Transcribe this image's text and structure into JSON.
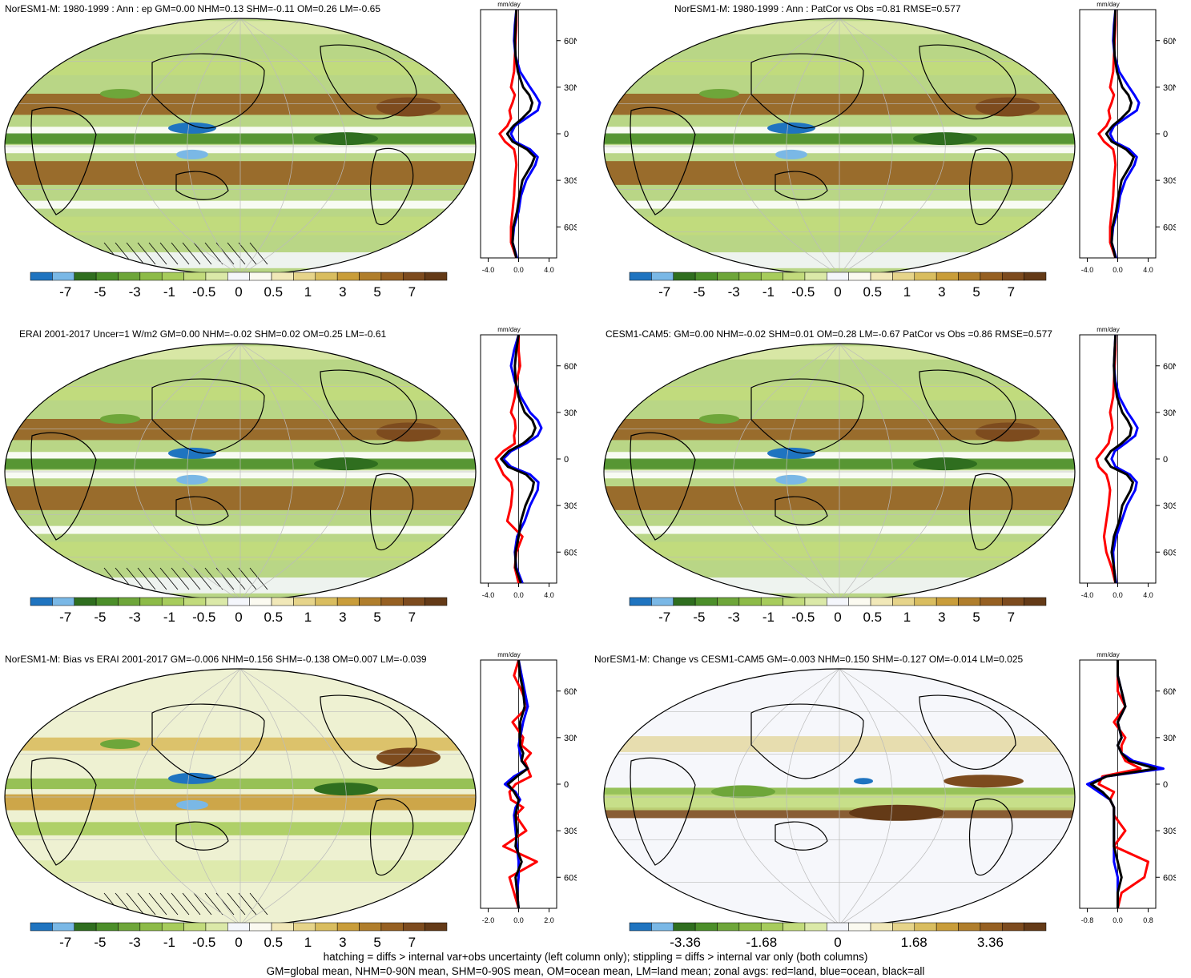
{
  "colors": {
    "palette": [
      "#1f74c0",
      "#7ab8e6",
      "#2f6e1f",
      "#4c8f2a",
      "#6ea63a",
      "#8dbb48",
      "#a7cc5c",
      "#c2db7c",
      "#dbe9a8",
      "#f4f6fb",
      "#fbfaf0",
      "#f1e8b8",
      "#e6d48a",
      "#d9bd5f",
      "#c99d3a",
      "#b07e2c",
      "#966022",
      "#7d4b1e",
      "#643a17"
    ],
    "ocean_line": "#0000ff",
    "land_line": "#ff0000",
    "all_line": "#000000"
  },
  "panels": [
    {
      "title": "NorESM1-M: 1980-1999 : Ann : ep GM=0.00 NHM=0.13 SHM=-0.11 OM=0.26 LM=-0.65",
      "colorbar_labels": [
        "-7",
        "-5",
        "-3",
        "-1",
        "-0.5",
        "0",
        "0.5",
        "1",
        "3",
        "5",
        "7"
      ],
      "zonal": {
        "unit": "mm/day",
        "xticks": [
          "-4.0",
          "0.0",
          "4.0"
        ],
        "yticks": [
          "60N",
          "30N",
          "0",
          "30S",
          "60S"
        ]
      }
    },
    {
      "title": "NorESM1-M: 1980-1999 : Ann : PatCor vs Obs =0.81 RMSE=0.577",
      "colorbar_labels": [
        "-7",
        "-5",
        "-3",
        "-1",
        "-0.5",
        "0",
        "0.5",
        "1",
        "3",
        "5",
        "7"
      ],
      "zonal": {
        "unit": "mm/day",
        "xticks": [
          "-4.0",
          "0.0",
          "4.0"
        ],
        "yticks": [
          "60N",
          "30N",
          "0",
          "30S",
          "60S"
        ]
      }
    },
    {
      "title": "ERAI 2001-2017 Uncer=1 W/m2 GM=0.00 NHM=-0.02 SHM=0.02 OM=0.25 LM=-0.61",
      "colorbar_labels": [
        "-7",
        "-5",
        "-3",
        "-1",
        "-0.5",
        "0",
        "0.5",
        "1",
        "3",
        "5",
        "7"
      ],
      "zonal": {
        "unit": "mm/day",
        "xticks": [
          "-4.0",
          "0.0",
          "4.0"
        ],
        "yticks": [
          "60N",
          "30N",
          "0",
          "30S",
          "60S"
        ]
      }
    },
    {
      "title": "CESM1-CAM5: GM=0.00 NHM=-0.02 SHM=0.01 OM=0.28 LM=-0.67 PatCor vs Obs =0.86 RMSE=0.577",
      "colorbar_labels": [
        "-7",
        "-5",
        "-3",
        "-1",
        "-0.5",
        "0",
        "0.5",
        "1",
        "3",
        "5",
        "7"
      ],
      "zonal": {
        "unit": "mm/day",
        "xticks": [
          "-4.0",
          "0.0",
          "4.0"
        ],
        "yticks": [
          "60N",
          "30N",
          "0",
          "30S",
          "60S"
        ]
      }
    },
    {
      "title": "NorESM1-M: Bias vs ERAI 2001-2017 GM=-0.006 NHM=0.156 SHM=-0.138 OM=0.007 LM=-0.039",
      "colorbar_labels": [
        "-7",
        "-5",
        "-3",
        "-1",
        "-0.5",
        "0",
        "0.5",
        "1",
        "3",
        "5",
        "7"
      ],
      "zonal": {
        "unit": "mm/day",
        "xticks": [
          "-2.0",
          "0.0",
          "2.0"
        ],
        "yticks": [
          "60N",
          "30N",
          "0",
          "30S",
          "60S"
        ]
      }
    },
    {
      "title": "NorESM1-M: Change vs CESM1-CAM5 GM=-0.003 NHM=0.150 SHM=-0.127 OM=-0.014 LM=0.025",
      "colorbar_labels": [
        "-3.36",
        "-1.68",
        "0",
        "1.68",
        "3.36"
      ],
      "zonal": {
        "unit": "mm/day",
        "xticks": [
          "-0.8",
          "0.0",
          "0.8"
        ],
        "yticks": [
          "60N",
          "30N",
          "0",
          "30S",
          "60S"
        ]
      }
    }
  ],
  "chart_data": [
    {
      "type": "heatmap",
      "title": "NorESM1-M: 1980-1999 : Ann : ep GM=0.00 NHM=0.13 SHM=-0.11 OM=0.26 LM=-0.65",
      "colorbar_levels": [
        "-7",
        "-5",
        "-3",
        "-1",
        "-0.5",
        "0",
        "0.5",
        "1",
        "3",
        "5",
        "7"
      ],
      "zonal_profile": {
        "type": "line",
        "xlim": [
          -5,
          5
        ],
        "ylim": [
          -80,
          80
        ],
        "lat": [
          -80,
          -70,
          -60,
          -50,
          -40,
          -30,
          -20,
          -15,
          -10,
          -5,
          0,
          5,
          10,
          15,
          20,
          25,
          30,
          40,
          50,
          60,
          70,
          80
        ],
        "series": [
          {
            "name": "land",
            "values": [
              -0.3,
              -1,
              -1,
              -0.8,
              -0.6,
              -0.5,
              -0.3,
              -0.4,
              -0.6,
              -1.8,
              -2.5,
              -1.5,
              -1,
              -1.2,
              -0.8,
              -0.5,
              -1,
              -0.6,
              -0.5,
              -0.4,
              -0.3,
              -0.3
            ]
          },
          {
            "name": "ocean",
            "values": [
              -0.2,
              -0.8,
              -0.6,
              0,
              0.3,
              1,
              2.2,
              2.5,
              1.5,
              -0.5,
              -1,
              -0.5,
              1,
              2.5,
              2.8,
              2.2,
              1.5,
              0.2,
              -0.4,
              -0.6,
              -0.5,
              -0.3
            ]
          },
          {
            "name": "all",
            "values": [
              -0.3,
              -0.8,
              -0.7,
              -0.2,
              0.1,
              0.5,
              1.7,
              2.1,
              1.1,
              -0.8,
              -1.5,
              -0.7,
              0.5,
              1.5,
              1.8,
              1.4,
              0.6,
              -0.1,
              -0.4,
              -0.5,
              -0.4,
              -0.3
            ]
          }
        ]
      }
    },
    {
      "type": "heatmap",
      "title": "NorESM1-M: 1980-1999 : Ann : PatCor vs Obs =0.81 RMSE=0.577",
      "colorbar_levels": [
        "-7",
        "-5",
        "-3",
        "-1",
        "-0.5",
        "0",
        "0.5",
        "1",
        "3",
        "5",
        "7"
      ],
      "zonal_profile": {
        "type": "line",
        "xlim": [
          -5,
          5
        ],
        "ylim": [
          -80,
          80
        ],
        "lat": [
          -80,
          -70,
          -60,
          -50,
          -40,
          -30,
          -20,
          -15,
          -10,
          -5,
          0,
          5,
          10,
          15,
          20,
          25,
          30,
          40,
          50,
          60,
          70,
          80
        ],
        "series": [
          {
            "name": "land",
            "values": [
              -0.3,
              -1,
              -1,
              -0.8,
              -0.6,
              -0.5,
              -0.3,
              -0.4,
              -0.6,
              -1.8,
              -2.5,
              -1.5,
              -1,
              -1.2,
              -0.8,
              -0.5,
              -1,
              -0.6,
              -0.5,
              -0.4,
              -0.3,
              -0.3
            ]
          },
          {
            "name": "ocean",
            "values": [
              -0.2,
              -0.8,
              -0.6,
              0,
              0.3,
              1,
              2.2,
              2.5,
              1.5,
              -0.5,
              -1,
              -0.5,
              1,
              2.5,
              2.8,
              2.2,
              1.5,
              0.2,
              -0.4,
              -0.6,
              -0.5,
              -0.3
            ]
          },
          {
            "name": "all",
            "values": [
              -0.3,
              -0.8,
              -0.7,
              -0.2,
              0.1,
              0.5,
              1.7,
              2.1,
              1.1,
              -0.8,
              -1.5,
              -0.7,
              0.5,
              1.5,
              1.8,
              1.4,
              0.6,
              -0.1,
              -0.4,
              -0.5,
              -0.4,
              -0.3
            ]
          }
        ]
      }
    },
    {
      "type": "heatmap",
      "title": "ERAI 2001-2017 Uncer=1 W/m2 GM=0.00 NHM=-0.02 SHM=0.02 OM=0.25 LM=-0.61",
      "colorbar_levels": [
        "-7",
        "-5",
        "-3",
        "-1",
        "-0.5",
        "0",
        "0.5",
        "1",
        "3",
        "5",
        "7"
      ],
      "zonal_profile": {
        "type": "line",
        "xlim": [
          -5,
          5
        ],
        "ylim": [
          -80,
          80
        ],
        "lat": [
          -80,
          -70,
          -60,
          -50,
          -40,
          -30,
          -20,
          -15,
          -10,
          -5,
          0,
          5,
          10,
          15,
          20,
          25,
          30,
          40,
          50,
          60,
          70,
          80
        ],
        "series": [
          {
            "name": "land",
            "values": [
              0,
              -0.5,
              -0.3,
              0.5,
              -1.5,
              -1,
              -0.8,
              -1,
              -2,
              -2.5,
              -3,
              -2,
              -0.5,
              -0.6,
              -0.4,
              -0.5,
              -1,
              -0.5,
              -0.3,
              0.2,
              0,
              0
            ]
          },
          {
            "name": "ocean",
            "values": [
              0.5,
              -0.3,
              -0.5,
              -0.2,
              0.8,
              1.5,
              2.5,
              2.6,
              1.5,
              -1,
              -2,
              -1,
              1,
              2.5,
              3,
              2.5,
              1.5,
              0.3,
              -0.5,
              -1,
              -0.6,
              0
            ]
          },
          {
            "name": "all",
            "values": [
              0.3,
              -0.4,
              -0.4,
              0,
              0.3,
              0.9,
              1.8,
              2,
              1,
              -1.4,
              -2.3,
              -1.3,
              0.6,
              1.8,
              2.2,
              1.8,
              0.8,
              0,
              -0.4,
              -0.5,
              -0.3,
              0
            ]
          }
        ]
      }
    },
    {
      "type": "heatmap",
      "title": "CESM1-CAM5: GM=0.00 NHM=-0.02 SHM=0.01 OM=0.28 LM=-0.67 PatCor vs Obs =0.86 RMSE=0.577",
      "colorbar_levels": [
        "-7",
        "-5",
        "-3",
        "-1",
        "-0.5",
        "0",
        "0.5",
        "1",
        "3",
        "5",
        "7"
      ],
      "zonal_profile": {
        "type": "line",
        "xlim": [
          -5,
          5
        ],
        "ylim": [
          -80,
          80
        ],
        "lat": [
          -80,
          -70,
          -60,
          -50,
          -40,
          -30,
          -20,
          -15,
          -10,
          -5,
          0,
          5,
          10,
          15,
          20,
          25,
          30,
          40,
          50,
          60,
          70,
          80
        ],
        "series": [
          {
            "name": "land",
            "values": [
              -0.3,
              -0.8,
              -1.5,
              -1.8,
              -1.5,
              -1.2,
              -1,
              -1.2,
              -1.5,
              -2.5,
              -2.8,
              -2,
              -1.2,
              -1,
              -0.7,
              -0.8,
              -1,
              -0.6,
              -0.5,
              -0.4,
              -0.3,
              -0.3
            ]
          },
          {
            "name": "ocean",
            "values": [
              -0.2,
              -0.5,
              -0.6,
              -0.2,
              0.5,
              1.2,
              2.3,
              2.5,
              1.6,
              -0.3,
              -0.8,
              -0.4,
              1,
              2.3,
              2.6,
              2,
              1.3,
              0.2,
              -0.3,
              -0.5,
              -0.4,
              -0.3
            ]
          },
          {
            "name": "all",
            "values": [
              -0.3,
              -0.5,
              -0.8,
              -0.5,
              0.2,
              0.6,
              1.7,
              2,
              1.2,
              -0.9,
              -1.6,
              -0.9,
              0.5,
              1.6,
              1.8,
              1.3,
              0.6,
              -0.1,
              -0.4,
              -0.5,
              -0.4,
              -0.3
            ]
          }
        ]
      }
    },
    {
      "type": "heatmap",
      "title": "NorESM1-M: Bias vs ERAI 2001-2017 GM=-0.006 NHM=0.156 SHM=-0.138 OM=0.007 LM=-0.039",
      "colorbar_levels": [
        "-7",
        "-5",
        "-3",
        "-1",
        "-0.5",
        "0",
        "0.5",
        "1",
        "3",
        "5",
        "7"
      ],
      "zonal_profile": {
        "type": "line",
        "xlim": [
          -2.5,
          2.5
        ],
        "ylim": [
          -80,
          80
        ],
        "lat": [
          -80,
          -70,
          -60,
          -50,
          -40,
          -30,
          -20,
          -15,
          -10,
          -5,
          0,
          5,
          10,
          15,
          20,
          25,
          30,
          40,
          50,
          60,
          70,
          80
        ],
        "series": [
          {
            "name": "land",
            "values": [
              0,
              -0.3,
              -0.6,
              1.2,
              -1,
              0.5,
              -0.2,
              0.3,
              -0.5,
              -0.6,
              -0.2,
              0.8,
              0.6,
              0.4,
              0.8,
              0.2,
              0.3,
              -0.4,
              0.6,
              0.2,
              -0.3,
              0
            ]
          },
          {
            "name": "ocean",
            "values": [
              0,
              -0.1,
              0,
              0,
              -0.1,
              -0.2,
              -0.3,
              -0.2,
              0.1,
              -0.2,
              -0.9,
              -0.3,
              0.6,
              0.2,
              0.1,
              0,
              0.1,
              0.3,
              0.6,
              0.4,
              0.2,
              0
            ]
          },
          {
            "name": "all",
            "values": [
              0,
              -0.1,
              -0.2,
              0.2,
              -0.2,
              -0.1,
              -0.2,
              -0.1,
              0,
              -0.3,
              -0.7,
              -0.1,
              0.6,
              0.2,
              0.3,
              0.1,
              0.1,
              0.1,
              0.4,
              0.3,
              0.1,
              0
            ]
          }
        ]
      }
    },
    {
      "type": "heatmap",
      "title": "NorESM1-M: Change vs CESM1-CAM5 GM=-0.003 NHM=0.150 SHM=-0.127 OM=-0.014 LM=0.025",
      "colorbar_levels": [
        "-3.36",
        "-1.68",
        "0",
        "1.68",
        "3.36"
      ],
      "zonal_profile": {
        "type": "line",
        "xlim": [
          -1,
          1
        ],
        "ylim": [
          -80,
          80
        ],
        "lat": [
          -80,
          -70,
          -60,
          -50,
          -40,
          -30,
          -20,
          -15,
          -10,
          -5,
          0,
          5,
          10,
          15,
          20,
          25,
          30,
          40,
          50,
          60,
          70,
          80
        ],
        "series": [
          {
            "name": "land",
            "values": [
              0,
              0.1,
              0.7,
              0.8,
              -0.1,
              0.2,
              -0.1,
              -0.1,
              -0.2,
              -0.1,
              -0.5,
              -0.4,
              0.6,
              0.2,
              0.1,
              0.1,
              0.2,
              -0.1,
              0.2,
              0,
              0,
              0
            ]
          },
          {
            "name": "ocean",
            "values": [
              0,
              0,
              0,
              -0.1,
              -0.1,
              -0.1,
              -0.1,
              -0.1,
              -0.2,
              -0.5,
              -0.8,
              -0.3,
              1.2,
              0.4,
              0.1,
              0,
              0.1,
              0,
              0.2,
              0.1,
              0,
              0
            ]
          },
          {
            "name": "all",
            "values": [
              0,
              0,
              0.1,
              0,
              -0.1,
              -0.1,
              -0.1,
              -0.1,
              -0.2,
              -0.4,
              -0.7,
              -0.3,
              1,
              0.3,
              0.1,
              0,
              0.1,
              0,
              0.2,
              0.1,
              0,
              0
            ]
          }
        ]
      }
    }
  ],
  "footer": {
    "line1": "hatching = diffs > internal var+obs uncertainty (left column only); stippling = diffs > internal var only (both columns)",
    "line2": "GM=global mean, NHM=0-90N mean, SHM=0-90S mean, OM=ocean mean, LM=land mean; zonal avgs: red=land, blue=ocean, black=all"
  }
}
